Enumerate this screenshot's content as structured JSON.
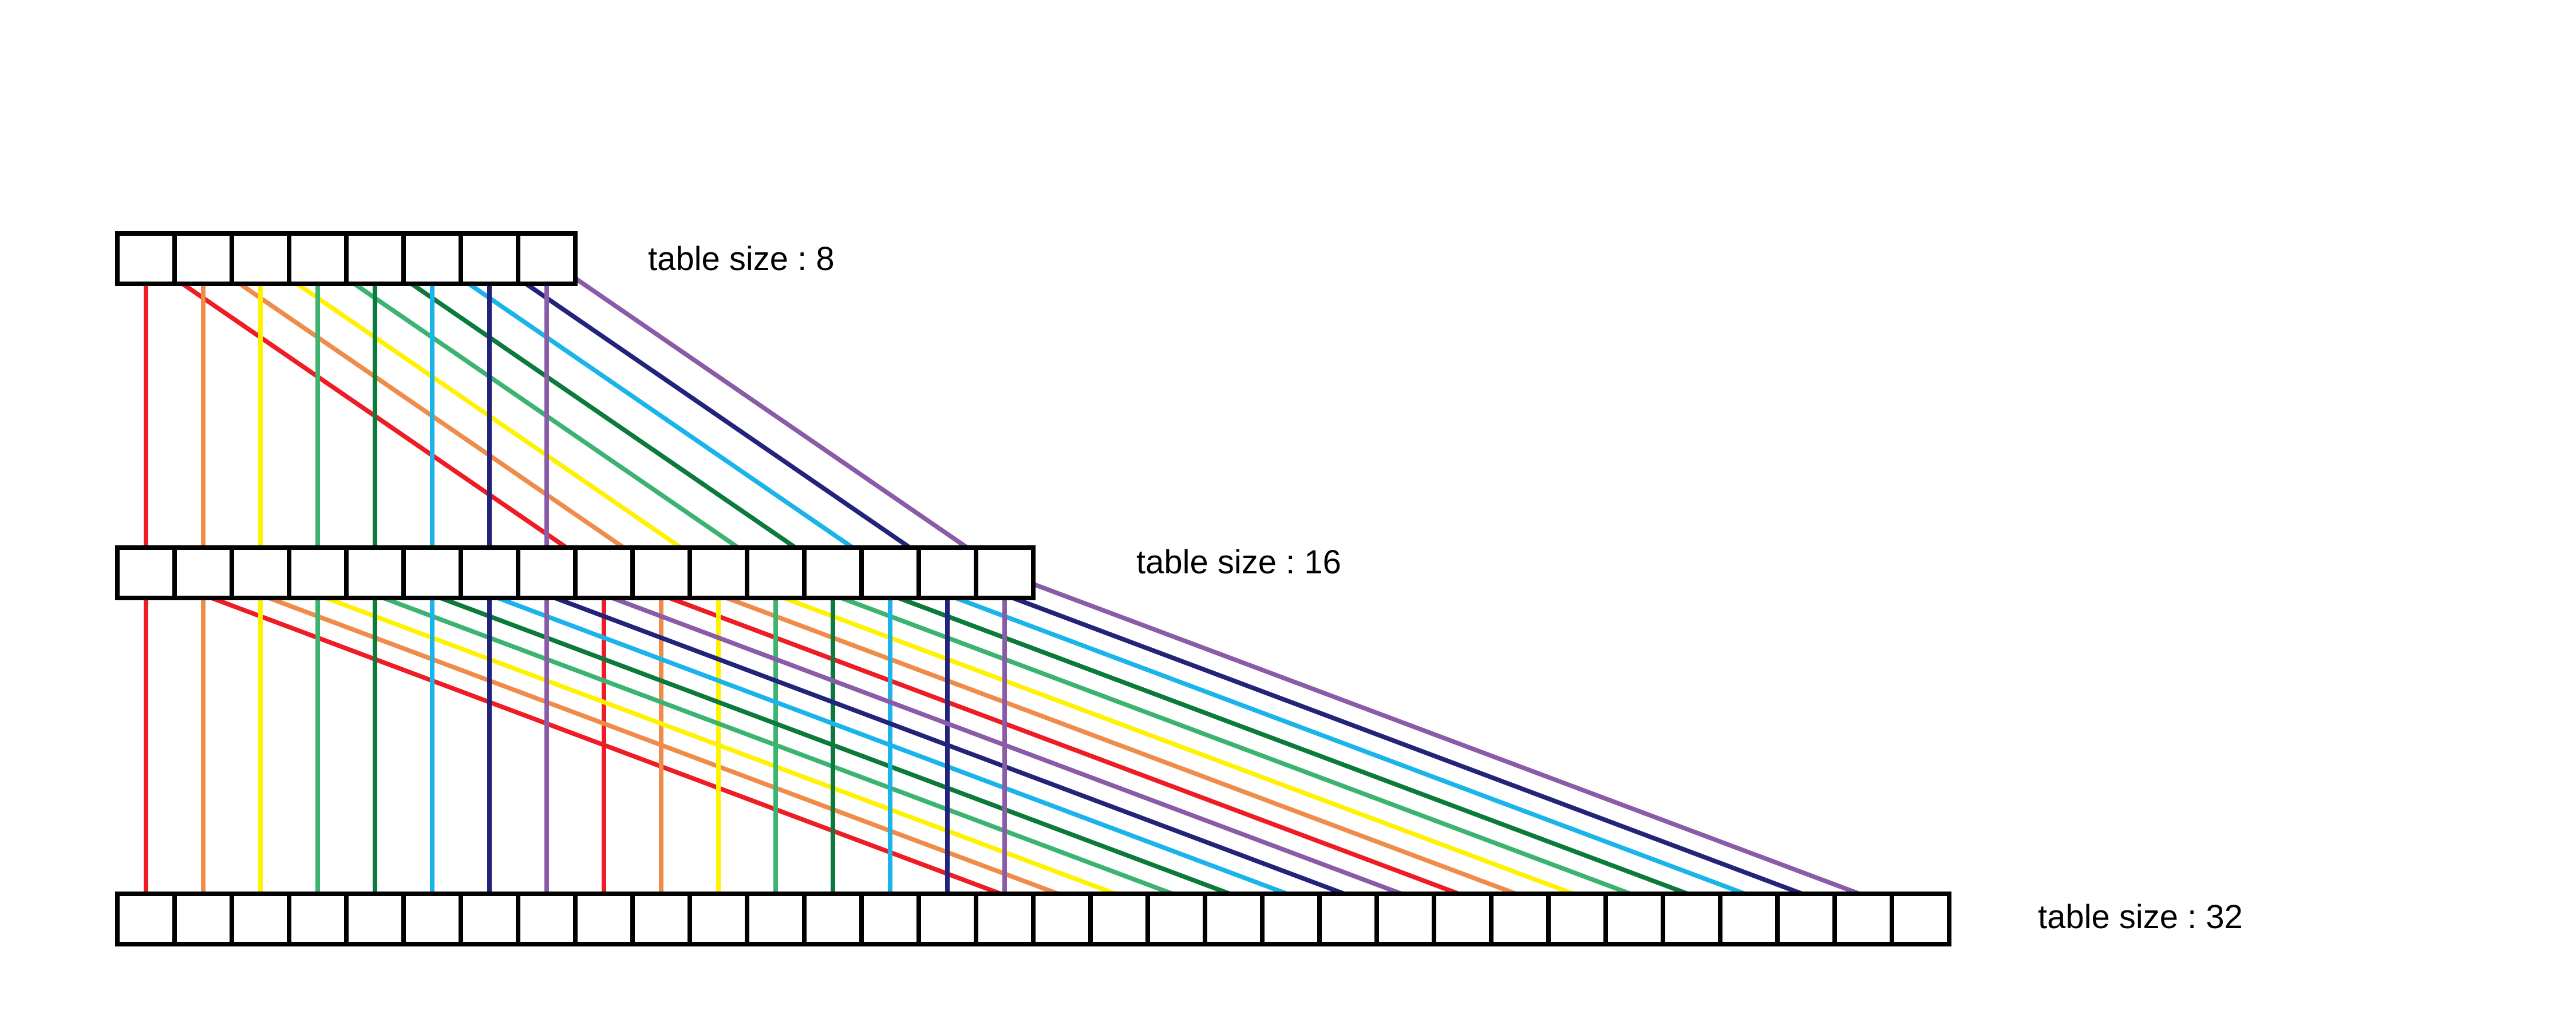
{
  "tables": [
    {
      "name": "table-8",
      "size": 8,
      "label": "table size : 8"
    },
    {
      "name": "table-16",
      "size": 16,
      "label": "table size : 16"
    },
    {
      "name": "table-32",
      "size": 32,
      "label": "table size : 32"
    }
  ],
  "slot_colors": [
    "#ee1c24",
    "#f08c4a",
    "#fff200",
    "#3cb371",
    "#0b7a3b",
    "#1ab4ea",
    "#22237a",
    "#8a5ca8"
  ]
}
